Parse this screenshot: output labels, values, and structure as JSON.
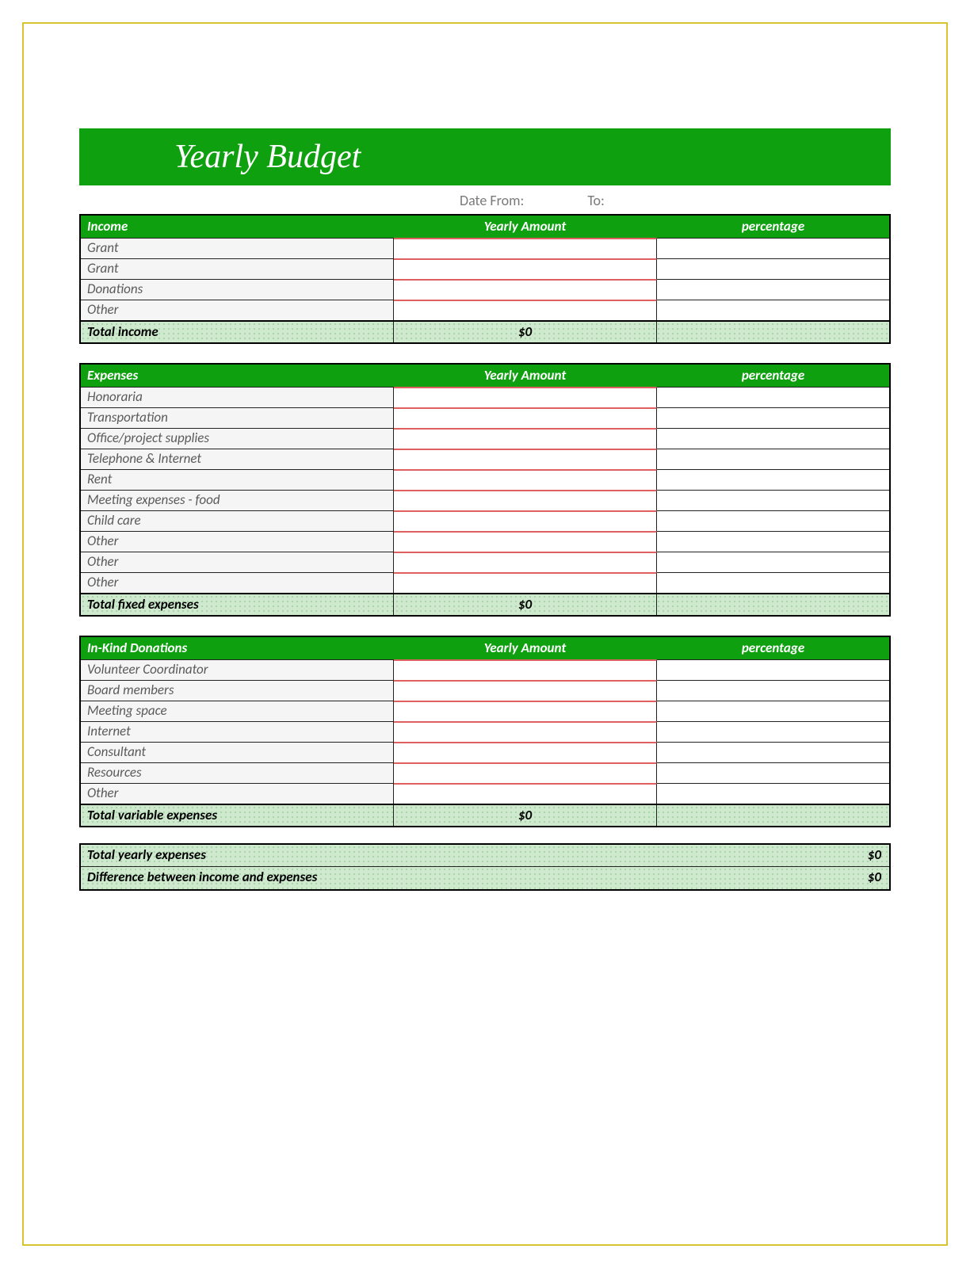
{
  "colors": {
    "accent": "#0fa010",
    "frame": "#d8c430",
    "pattern_bg": "#cfe9cf",
    "pattern_dot": "#9fd09f",
    "row_border_red": "#e06060",
    "text_muted": "#5a5a5a"
  },
  "banner": {
    "title": "Yearly Budget"
  },
  "date": {
    "from_label": "Date From:",
    "to_label": "To:"
  },
  "columns": {
    "amount": "Yearly Amount",
    "pct": "percentage"
  },
  "sections": {
    "income": {
      "header": "Income",
      "rows": [
        "Grant",
        "Grant",
        "Donations",
        "Other"
      ],
      "total_label": "Total income",
      "total_value": "$0"
    },
    "expenses": {
      "header": "Expenses",
      "rows": [
        "Honoraria",
        "Transportation",
        "Office/project supplies",
        "Telephone & Internet",
        "Rent",
        "Meeting expenses - food",
        "Child care",
        "Other",
        "Other",
        "Other"
      ],
      "total_label": "Total fixed expenses",
      "total_value": "$0"
    },
    "inkind": {
      "header": "In-Kind Donations",
      "rows": [
        "Volunteer Coordinator",
        "Board members",
        "Meeting space",
        "Internet",
        "Consultant",
        "Resources",
        "Other"
      ],
      "total_label": "Total variable expenses",
      "total_value": "$0"
    }
  },
  "summary": {
    "total_expenses_label": "Total  yearly expenses",
    "total_expenses_value": "$0",
    "difference_label": "Difference between income and expenses",
    "difference_value": "$0"
  }
}
